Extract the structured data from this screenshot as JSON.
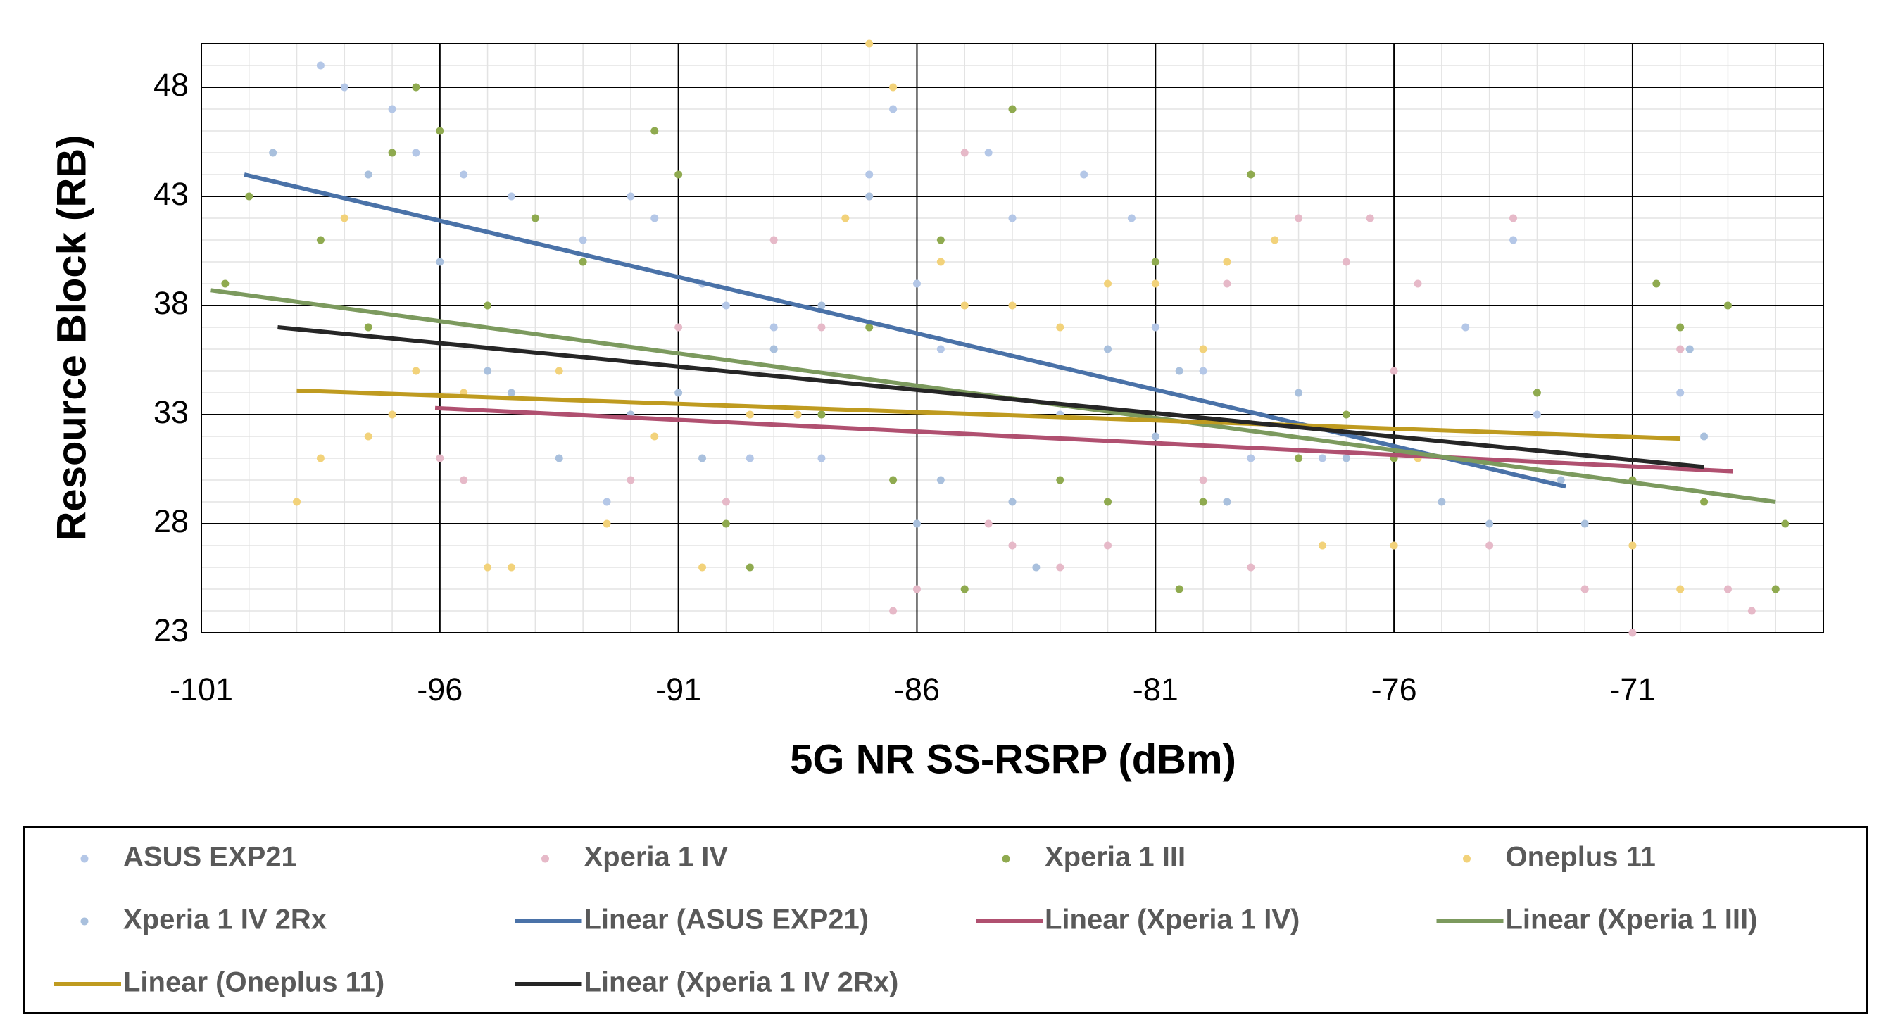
{
  "chart_data": {
    "type": "scatter",
    "x_label": "5G NR SS-RSRP (dBm)",
    "y_label": "Resource Block (RB)",
    "xlim": [
      -101,
      -67
    ],
    "xticks": [
      -101,
      -96,
      -91,
      -86,
      -81,
      -76,
      -71
    ],
    "ylim": [
      23,
      50
    ],
    "yticks": [
      23,
      28,
      33,
      38,
      43,
      48
    ],
    "grid": true,
    "minor_grid": true,
    "legend": "bottom",
    "series": [
      {
        "name": "ASUS EXP21",
        "type": "scatter",
        "color": "#b4c7e7",
        "x": [
          -98.5,
          -98,
          -97,
          -96.5,
          -95.5,
          -94.5,
          -94,
          -93,
          -92,
          -91.5,
          -90.5,
          -90,
          -89,
          -88.5,
          -88,
          -87,
          -86.5,
          -86,
          -85.5,
          -84.5,
          -84,
          -83,
          -82.5,
          -81.5,
          -81,
          -80,
          -79,
          -77.5,
          -76,
          -74.5,
          -73.5,
          -73,
          -70,
          -89.5,
          -92.5
        ],
        "y": [
          49,
          48,
          47,
          45,
          44,
          43,
          42,
          41,
          43,
          42,
          39,
          38,
          37,
          33,
          31,
          44,
          47,
          39,
          36,
          45,
          42,
          33,
          44,
          42,
          37,
          35,
          31,
          31,
          27,
          37,
          41,
          33,
          34,
          31,
          29
        ]
      },
      {
        "name": "Xperia 1 IV",
        "type": "scatter",
        "color": "#e6b9c8",
        "x": [
          -96,
          -95.5,
          -92,
          -91,
          -90,
          -89,
          -88,
          -87,
          -86.5,
          -86,
          -85,
          -84.5,
          -84,
          -83,
          -82,
          -80,
          -79.5,
          -79,
          -78,
          -77,
          -76.5,
          -76,
          -75.5,
          -74,
          -73.5,
          -72,
          -71,
          -70,
          -69,
          -68.5
        ],
        "y": [
          31,
          30,
          30,
          37,
          29,
          41,
          37,
          43,
          24,
          25,
          45,
          28,
          27,
          26,
          27,
          30,
          39,
          26,
          42,
          40,
          42,
          35,
          39,
          27,
          42,
          25,
          23,
          36,
          25,
          24
        ]
      },
      {
        "name": "Xperia 1 III",
        "type": "scatter",
        "color": "#8faa4f",
        "x": [
          -100.5,
          -100,
          -98.5,
          -97.5,
          -97,
          -96.5,
          -96,
          -95,
          -94,
          -93,
          -91.5,
          -91,
          -90,
          -89.5,
          -88,
          -87,
          -86.5,
          -85.5,
          -85,
          -84,
          -83,
          -82,
          -81,
          -80.5,
          -80,
          -79,
          -78,
          -77,
          -76,
          -73,
          -71,
          -70.5,
          -70,
          -69.5,
          -69,
          -68,
          -67.8
        ],
        "y": [
          39,
          43,
          41,
          37,
          45,
          48,
          46,
          38,
          42,
          40,
          46,
          44,
          28,
          26,
          33,
          37,
          30,
          41,
          25,
          47,
          30,
          29,
          40,
          25,
          29,
          44,
          31,
          33,
          31,
          34,
          30,
          39,
          37,
          29,
          38,
          25,
          28
        ]
      },
      {
        "name": "Oneplus 11",
        "type": "scatter",
        "color": "#f2d27a",
        "x": [
          -99,
          -98.5,
          -98,
          -97.5,
          -97,
          -96.5,
          -95.5,
          -95,
          -94.5,
          -93.5,
          -92.5,
          -91.5,
          -90.5,
          -89.5,
          -88.5,
          -87.5,
          -87,
          -86.5,
          -85.5,
          -85,
          -84,
          -83,
          -82,
          -81,
          -80,
          -79.5,
          -78.5,
          -77.5,
          -76,
          -75.5,
          -71,
          -70
        ],
        "y": [
          29,
          31,
          42,
          32,
          33,
          35,
          34,
          26,
          26,
          35,
          28,
          32,
          26,
          33,
          33,
          42,
          50,
          48,
          40,
          38,
          38,
          37,
          39,
          39,
          36,
          40,
          41,
          27,
          27,
          31,
          27,
          25
        ]
      },
      {
        "name": "Xperia 1 IV 2Rx",
        "type": "scatter",
        "color": "#a9c0dd",
        "x": [
          -99.5,
          -97.5,
          -96,
          -95,
          -94.5,
          -93.5,
          -92,
          -91,
          -90.5,
          -89,
          -88,
          -87,
          -86,
          -85.5,
          -84,
          -83.5,
          -82,
          -81,
          -80.5,
          -79.5,
          -78,
          -77,
          -75,
          -74,
          -72.5,
          -72,
          -69.8,
          -69.5
        ],
        "y": [
          45,
          44,
          40,
          35,
          34,
          31,
          33,
          34,
          31,
          36,
          38,
          43,
          28,
          30,
          29,
          26,
          36,
          32,
          35,
          29,
          34,
          31,
          29,
          28,
          30,
          28,
          36,
          32
        ]
      },
      {
        "name": "Linear (ASUS EXP21)",
        "type": "line",
        "color": "#4a72a8",
        "x": [
          -100.1,
          -72.4
        ],
        "y": [
          44,
          29.7
        ]
      },
      {
        "name": "Linear (Xperia 1 IV)",
        "type": "line",
        "color": "#b05070",
        "x": [
          -96.1,
          -68.9
        ],
        "y": [
          33.3,
          30.4
        ]
      },
      {
        "name": "Linear (Xperia 1 III)",
        "type": "line",
        "color": "#7c9a5e",
        "x": [
          -100.8,
          -68.0
        ],
        "y": [
          38.7,
          29
        ]
      },
      {
        "name": "Linear (Oneplus 11)",
        "type": "line",
        "color": "#bf9b20",
        "x": [
          -99.0,
          -70.0
        ],
        "y": [
          34.1,
          31.9
        ]
      },
      {
        "name": "Linear (Xperia 1 IV 2Rx)",
        "type": "line",
        "color": "#262626",
        "x": [
          -99.4,
          -69.5
        ],
        "y": [
          37,
          30.6
        ]
      }
    ]
  }
}
